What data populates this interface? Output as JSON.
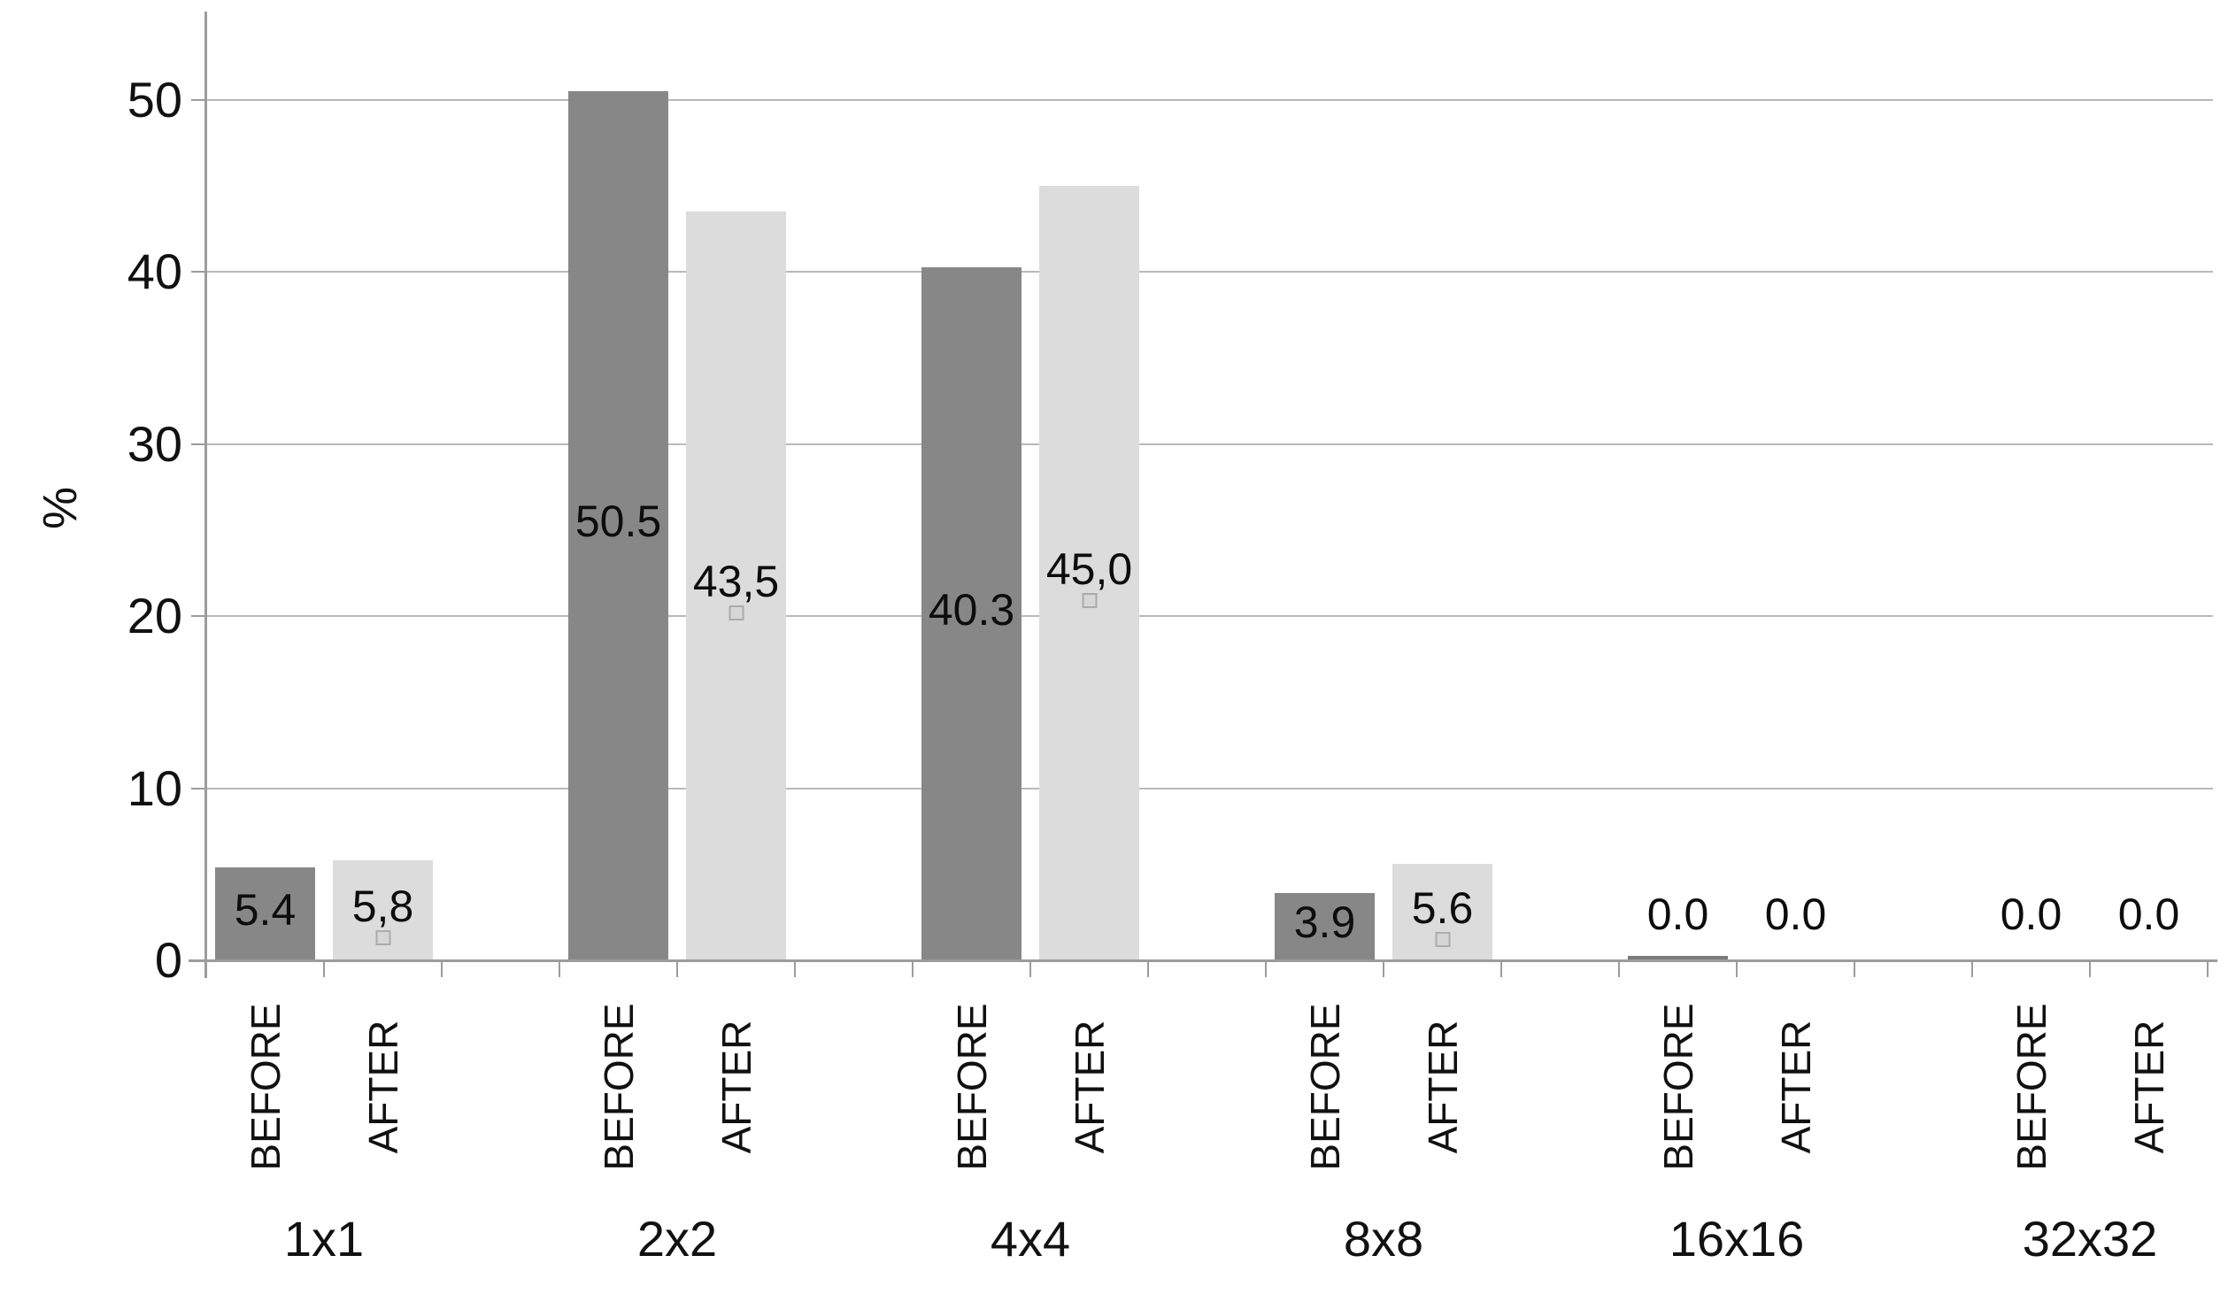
{
  "figure": {
    "background": "#ffffff"
  },
  "chart_data": {
    "type": "bar",
    "title": "",
    "xlabel": "",
    "ylabel": "%",
    "ylim": [
      0,
      55
    ],
    "yticks": [
      0,
      10,
      20,
      30,
      40,
      50
    ],
    "grid": "horizontal",
    "legend_position": "none (series names shown as rotated labels under each bar)",
    "categories": [
      "1x1",
      "2x2",
      "4x4",
      "8x8",
      "16x16",
      "32x32"
    ],
    "series": [
      {
        "name": "BEFORE",
        "color": "#878787",
        "values": [
          5.4,
          50.5,
          40.3,
          3.9,
          0.0,
          0.0
        ],
        "value_labels": [
          "5.4",
          "50.5",
          "40.3",
          "3.9",
          "0.0",
          "0.0"
        ],
        "baseline_trace": [
          false,
          false,
          false,
          false,
          true,
          false
        ],
        "label_legend_key": [
          false,
          false,
          false,
          false,
          false,
          false
        ]
      },
      {
        "name": "AFTER",
        "color": "#dcdcdc",
        "values": [
          5.8,
          43.5,
          45.0,
          5.6,
          0.0,
          0.0
        ],
        "value_labels": [
          "5,8",
          "43,5",
          "45,0",
          "5.6",
          "0.0",
          "0.0"
        ],
        "baseline_trace": [
          false,
          false,
          false,
          false,
          false,
          false
        ],
        "label_legend_key": [
          true,
          true,
          true,
          true,
          false,
          false
        ]
      }
    ]
  },
  "colors": {
    "before_bar": "#878787",
    "after_bar": "#dcdcdc",
    "gridline": "#b9b9b9",
    "axis": "#9c9c9c",
    "text": "#111111",
    "baseline_trace": "#7b7b7b",
    "legend_key_fill": "#d6d6d6",
    "legend_key_border": "#ababab"
  }
}
